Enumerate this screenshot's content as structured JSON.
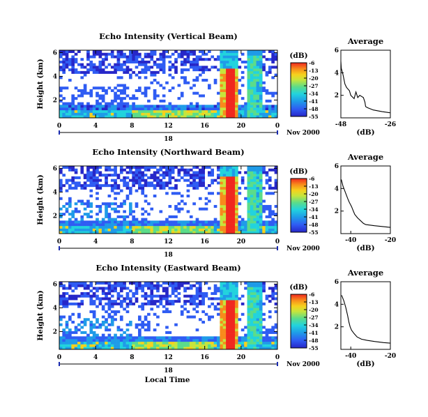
{
  "figure": {
    "xlabel": "Local Time",
    "ylabel": "Height (km)",
    "date_label": "Nov 2000",
    "day_label": "18",
    "colorbar_unit": "(dB)",
    "average_title": "Average",
    "average_xlabel": "(dB)"
  },
  "chart_data": [
    {
      "type": "heatmap",
      "title": "Echo Intensity (Vertical Beam)",
      "xlabel": "",
      "ylabel": "Height (km)",
      "x_ticks": [
        "0",
        "4",
        "8",
        "12",
        "16",
        "20",
        "0"
      ],
      "xlim": [
        0,
        24
      ],
      "y_ticks": [
        "2",
        "4",
        "6"
      ],
      "ylim": [
        0.5,
        6.2
      ],
      "colorbar": {
        "label": "(dB)",
        "ticks": [
          "-6",
          "-13",
          "-20",
          "-27",
          "-34",
          "-41",
          "-48",
          "-55"
        ],
        "range": [
          -55,
          -6
        ]
      },
      "colors": [
        "#2727c8",
        "#2f5cf3",
        "#1f9be8",
        "#22d3dd",
        "#5bdc8a",
        "#c6e53c",
        "#f6d11d",
        "#f88a1c",
        "#f0281f"
      ]
    },
    {
      "type": "line",
      "title": "Average",
      "xlabel": "(dB)",
      "ylabel": "",
      "x_ticks": [
        "-48",
        "-26"
      ],
      "xlim": [
        -48,
        -26
      ],
      "y_ticks": [
        "2",
        "4",
        "6"
      ],
      "ylim": [
        0,
        6
      ],
      "series": [
        {
          "x": [
            -48.5,
            -47.8,
            -47.0,
            -46.2,
            -45.5,
            -44.2,
            -43.6,
            -42.1,
            -41.3,
            -40.5,
            -39.6,
            -38.0,
            -37.3,
            -37.0,
            -36.2,
            -33.6,
            -29.7,
            -26.2
          ],
          "y": [
            5.0,
            4.4,
            3.8,
            3.0,
            2.7,
            2.4,
            2.0,
            1.7,
            2.3,
            1.8,
            2.0,
            1.8,
            1.4,
            1.0,
            0.9,
            0.7,
            0.55,
            0.45
          ]
        }
      ]
    },
    {
      "type": "heatmap",
      "title": "Echo Intensity (Northward Beam)",
      "xlabel": "",
      "ylabel": "Height (km)",
      "x_ticks": [
        "0",
        "4",
        "8",
        "12",
        "16",
        "20",
        "0"
      ],
      "xlim": [
        0,
        24
      ],
      "y_ticks": [
        "2",
        "4",
        "6"
      ],
      "ylim": [
        0.5,
        6.2
      ],
      "colorbar": {
        "label": "(dB)",
        "ticks": [
          "-6",
          "-13",
          "-20",
          "-27",
          "-34",
          "-41",
          "-48",
          "-55"
        ],
        "range": [
          -55,
          -6
        ]
      },
      "colors": [
        "#2727c8",
        "#2f5cf3",
        "#1f9be8",
        "#22d3dd",
        "#5bdc8a",
        "#c6e53c",
        "#f6d11d",
        "#f88a1c",
        "#f0281f"
      ]
    },
    {
      "type": "line",
      "title": "Average",
      "xlabel": "(dB)",
      "ylabel": "",
      "x_ticks": [
        "-40",
        "-20"
      ],
      "xlim": [
        -45,
        -20
      ],
      "y_ticks": [
        "2",
        "4",
        "6"
      ],
      "ylim": [
        0,
        6
      ],
      "series": [
        {
          "x": [
            -44.8,
            -43.9,
            -42.6,
            -41.5,
            -40.8,
            -39.6,
            -38.7,
            -38.0,
            -36.6,
            -34.8,
            -33.6,
            -32.4,
            -28.0,
            -22.5,
            -20.1
          ],
          "y": [
            4.8,
            4.2,
            3.6,
            3.1,
            2.8,
            2.4,
            2.0,
            1.7,
            1.4,
            1.1,
            0.9,
            0.8,
            0.7,
            0.6,
            0.55
          ]
        }
      ]
    },
    {
      "type": "heatmap",
      "title": "Echo Intensity (Eastward Beam)",
      "xlabel": "Local Time",
      "ylabel": "Height (km)",
      "x_ticks": [
        "0",
        "4",
        "8",
        "12",
        "16",
        "20",
        "0"
      ],
      "xlim": [
        0,
        24
      ],
      "y_ticks": [
        "2",
        "4",
        "6"
      ],
      "ylim": [
        0.5,
        6.2
      ],
      "colorbar": {
        "label": "(dB)",
        "ticks": [
          "-6",
          "-13",
          "-20",
          "-27",
          "-34",
          "-41",
          "-48",
          "-55"
        ],
        "range": [
          -55,
          -6
        ]
      },
      "colors": [
        "#2727c8",
        "#2f5cf3",
        "#1f9be8",
        "#22d3dd",
        "#5bdc8a",
        "#c6e53c",
        "#f6d11d",
        "#f88a1c",
        "#f0281f"
      ]
    },
    {
      "type": "line",
      "title": "Average",
      "xlabel": "(dB)",
      "ylabel": "",
      "x_ticks": [
        "-40",
        "-20"
      ],
      "xlim": [
        -45,
        -20
      ],
      "y_ticks": [
        "2",
        "4",
        "6"
      ],
      "ylim": [
        0,
        6
      ],
      "series": [
        {
          "x": [
            -44.6,
            -43.5,
            -42.5,
            -41.6,
            -40.9,
            -40.3,
            -39.6,
            -38.3,
            -36.8,
            -34.6,
            -31.8,
            -28.0,
            -23.4,
            -20.1
          ],
          "y": [
            4.8,
            4.3,
            3.7,
            3.0,
            2.4,
            2.0,
            1.7,
            1.4,
            1.1,
            0.9,
            0.8,
            0.7,
            0.6,
            0.55
          ]
        }
      ]
    }
  ]
}
